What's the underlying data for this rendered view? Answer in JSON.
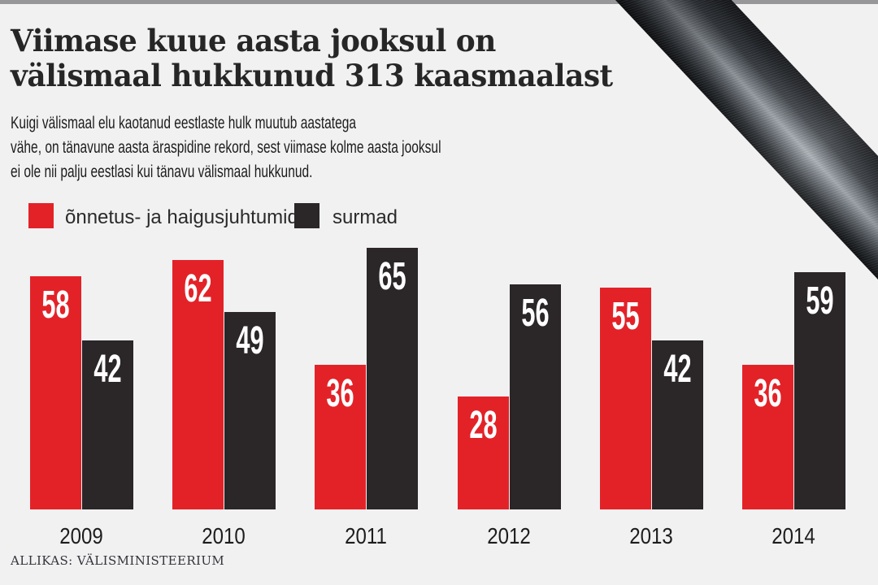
{
  "header": {
    "title_line1": "Viimase kuue aasta jooksul on",
    "title_line2": "välismaal hukkunud 313 kaasmaalast",
    "subtitle_lines": [
      "Kuigi välismaal elu kaotanud eestlaste hulk muutub aastatega",
      "vähe, on tänavune aasta äraspidine rekord, sest viimase kolme aasta jooksul",
      "ei ole nii palju eestlasi kui tänavu välismaal hukkunud."
    ]
  },
  "source": "ALLIKAS: VÄLISMINISTEERIUM",
  "decor": {
    "ribbon_name": "black-mourning-ribbon",
    "top_strip_color": "#97979a"
  },
  "colors": {
    "background": "#f1f1f2",
    "accent_red": "#e32228",
    "bar_black": "#2b2628",
    "text_dark": "#262626",
    "value_label": "#ffffff"
  },
  "chart_data": {
    "type": "bar",
    "title": "Viimase kuue aasta jooksul on välismaal hukkunud 313 kaasmaalast",
    "categories": [
      "2009",
      "2010",
      "2011",
      "2012",
      "2013",
      "2014"
    ],
    "series": [
      {
        "name": "õnnetus- ja haigusjuhtumid",
        "color": "#e32228",
        "values": [
          58,
          62,
          36,
          28,
          55,
          36
        ]
      },
      {
        "name": "surmad",
        "color": "#2b2628",
        "values": [
          42,
          49,
          65,
          56,
          42,
          59
        ]
      }
    ],
    "total_mentioned_in_title": 313,
    "ylim": [
      0,
      65
    ],
    "grid": false,
    "legend_position": "top-left above chart",
    "value_labels": "inside bar top, white",
    "xlabel": "",
    "ylabel": ""
  }
}
